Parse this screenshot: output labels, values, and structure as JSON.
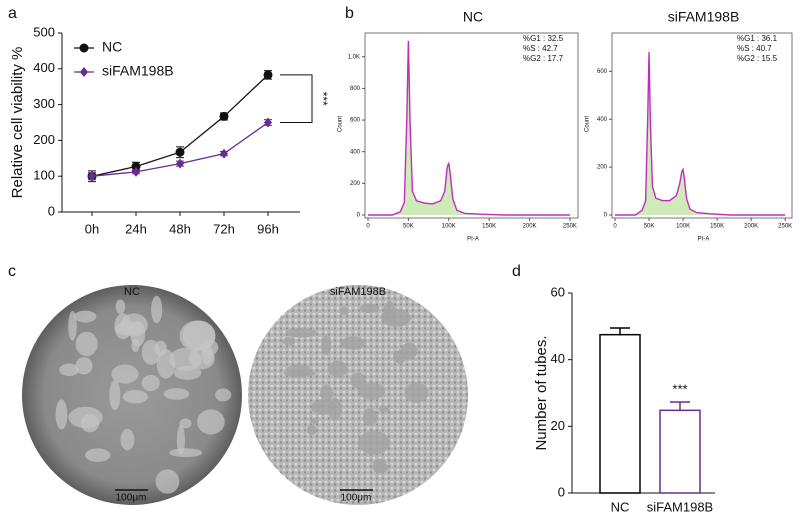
{
  "chart_data": [
    {
      "panel": "a",
      "type": "line",
      "categories": [
        "0h",
        "24h",
        "48h",
        "72h",
        "96h"
      ],
      "series": [
        {
          "name": "NC",
          "color": "#111111",
          "values": [
            100,
            127,
            167,
            267,
            383
          ],
          "errors": [
            15,
            12,
            15,
            10,
            12
          ]
        },
        {
          "name": "siFAM198B",
          "color": "#6a2c91",
          "values": [
            100,
            112,
            135,
            163,
            250
          ],
          "errors": [
            10,
            5,
            7,
            6,
            8
          ]
        }
      ],
      "ylabel": "Relative cell viability %",
      "ylim": [
        0,
        500
      ],
      "yticks": [
        0,
        100,
        200,
        300,
        400,
        500
      ],
      "annotation": "***"
    },
    {
      "panel": "b",
      "type": "area",
      "title": "NC",
      "xlabel": "PI-A",
      "ylabel": "Count",
      "color": "#c02cc0",
      "x": [
        0,
        10000,
        20000,
        30000,
        40000,
        45000,
        48000,
        50000,
        52000,
        55000,
        60000,
        70000,
        80000,
        90000,
        95000,
        98000,
        100000,
        102000,
        105000,
        110000,
        120000,
        140000,
        170000,
        200000,
        250000
      ],
      "values": [
        0,
        0,
        0,
        0,
        20,
        80,
        600,
        1100,
        600,
        150,
        90,
        75,
        70,
        90,
        150,
        300,
        330,
        250,
        100,
        30,
        10,
        5,
        0,
        0,
        0
      ],
      "xlim": [
        0,
        260000
      ],
      "xticks": [
        0,
        {
          "value": 50000,
          "label": "50K"
        },
        {
          "value": 100000,
          "label": "100K"
        },
        {
          "value": 150000,
          "label": "150K"
        },
        {
          "value": 200000,
          "label": "200K"
        },
        {
          "value": 250000,
          "label": "250K"
        }
      ],
      "ylim": [
        0,
        1150
      ],
      "yticks": [
        0,
        200,
        400,
        600,
        800,
        {
          "value": 1000,
          "label": "1.0K"
        }
      ],
      "annotations": [
        "%G1 : 32.5",
        "%S : 42.7",
        "%G2 : 17.7"
      ]
    },
    {
      "type": "area",
      "title": "siFAM198B",
      "xlabel": "PI-A",
      "ylabel": "Count",
      "color": "#c02cc0",
      "x": [
        0,
        10000,
        20000,
        30000,
        40000,
        45000,
        48000,
        50000,
        52000,
        55000,
        60000,
        70000,
        80000,
        90000,
        95000,
        98000,
        100000,
        102000,
        105000,
        110000,
        120000,
        140000,
        170000,
        200000,
        250000
      ],
      "values": [
        0,
        0,
        0,
        0,
        20,
        60,
        400,
        680,
        380,
        120,
        70,
        60,
        60,
        80,
        130,
        180,
        190,
        150,
        70,
        25,
        10,
        5,
        0,
        0,
        0
      ],
      "xlim": [
        0,
        260000
      ],
      "xticks": [
        0,
        {
          "value": 50000,
          "label": "50K"
        },
        {
          "value": 100000,
          "label": "100K"
        },
        {
          "value": 150000,
          "label": "150K"
        },
        {
          "value": 200000,
          "label": "200K"
        },
        {
          "value": 250000,
          "label": "250K"
        }
      ],
      "ylim": [
        0,
        760
      ],
      "yticks": [
        0,
        200,
        400,
        600
      ],
      "annotations": [
        "%G1 : 36.1",
        "%S : 40.7",
        "%G2 : 15.5"
      ]
    },
    {
      "panel": "d",
      "type": "bar",
      "categories": [
        "NC",
        "siFAM198B"
      ],
      "values": [
        47.5,
        24.8
      ],
      "errors": [
        2,
        2.5
      ],
      "colors": [
        "#000000",
        "#6a2c91"
      ],
      "ylabel": "Number of tubes.",
      "ylim": [
        0,
        60
      ],
      "yticks": [
        0,
        20,
        40,
        60
      ],
      "annotation": "***"
    }
  ],
  "micrographs": {
    "panel": "c",
    "labels": [
      "NC",
      "siFAM198B"
    ],
    "scale_bars": [
      "100μm",
      "100μm"
    ]
  }
}
